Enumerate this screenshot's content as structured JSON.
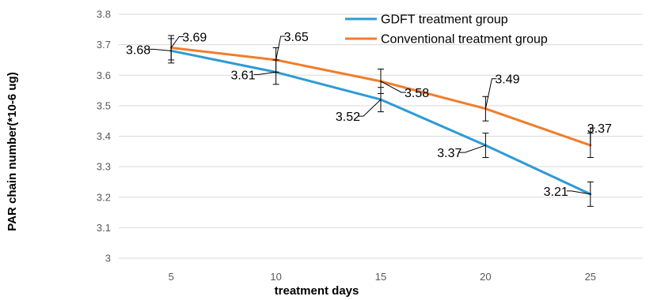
{
  "chart_data": {
    "type": "line",
    "title": "",
    "xlabel": "treatment days",
    "ylabel": "PAR chain number(*10-6 ug)",
    "x": [
      5,
      10,
      15,
      20,
      25
    ],
    "x_tick_labels": [
      "5",
      "10",
      "15",
      "20",
      "25"
    ],
    "ylim": [
      3,
      3.8
    ],
    "y_tick_labels": [
      "3",
      "3.1",
      "3.2",
      "3.3",
      "3.4",
      "3.5",
      "3.6",
      "3.7",
      "3.8"
    ],
    "grid": "horizontal",
    "legend_position": "top-right",
    "series": [
      {
        "name": "GDFT treatment group",
        "color": "#2e9bd6",
        "values": [
          3.68,
          3.61,
          3.52,
          3.37,
          3.21
        ],
        "labels": [
          "3.68",
          "3.61",
          "3.52",
          "3.37",
          "3.21"
        ],
        "error": [
          0.04,
          0.04,
          0.04,
          0.04,
          0.04
        ]
      },
      {
        "name": "Conventional treatment group",
        "color": "#f07d2c",
        "values": [
          3.69,
          3.65,
          3.58,
          3.49,
          3.37
        ],
        "labels": [
          "3.69",
          "3.65",
          "3.58",
          "3.49",
          "3.37"
        ],
        "error": [
          0.04,
          0.04,
          0.04,
          0.04,
          0.04
        ]
      }
    ]
  }
}
